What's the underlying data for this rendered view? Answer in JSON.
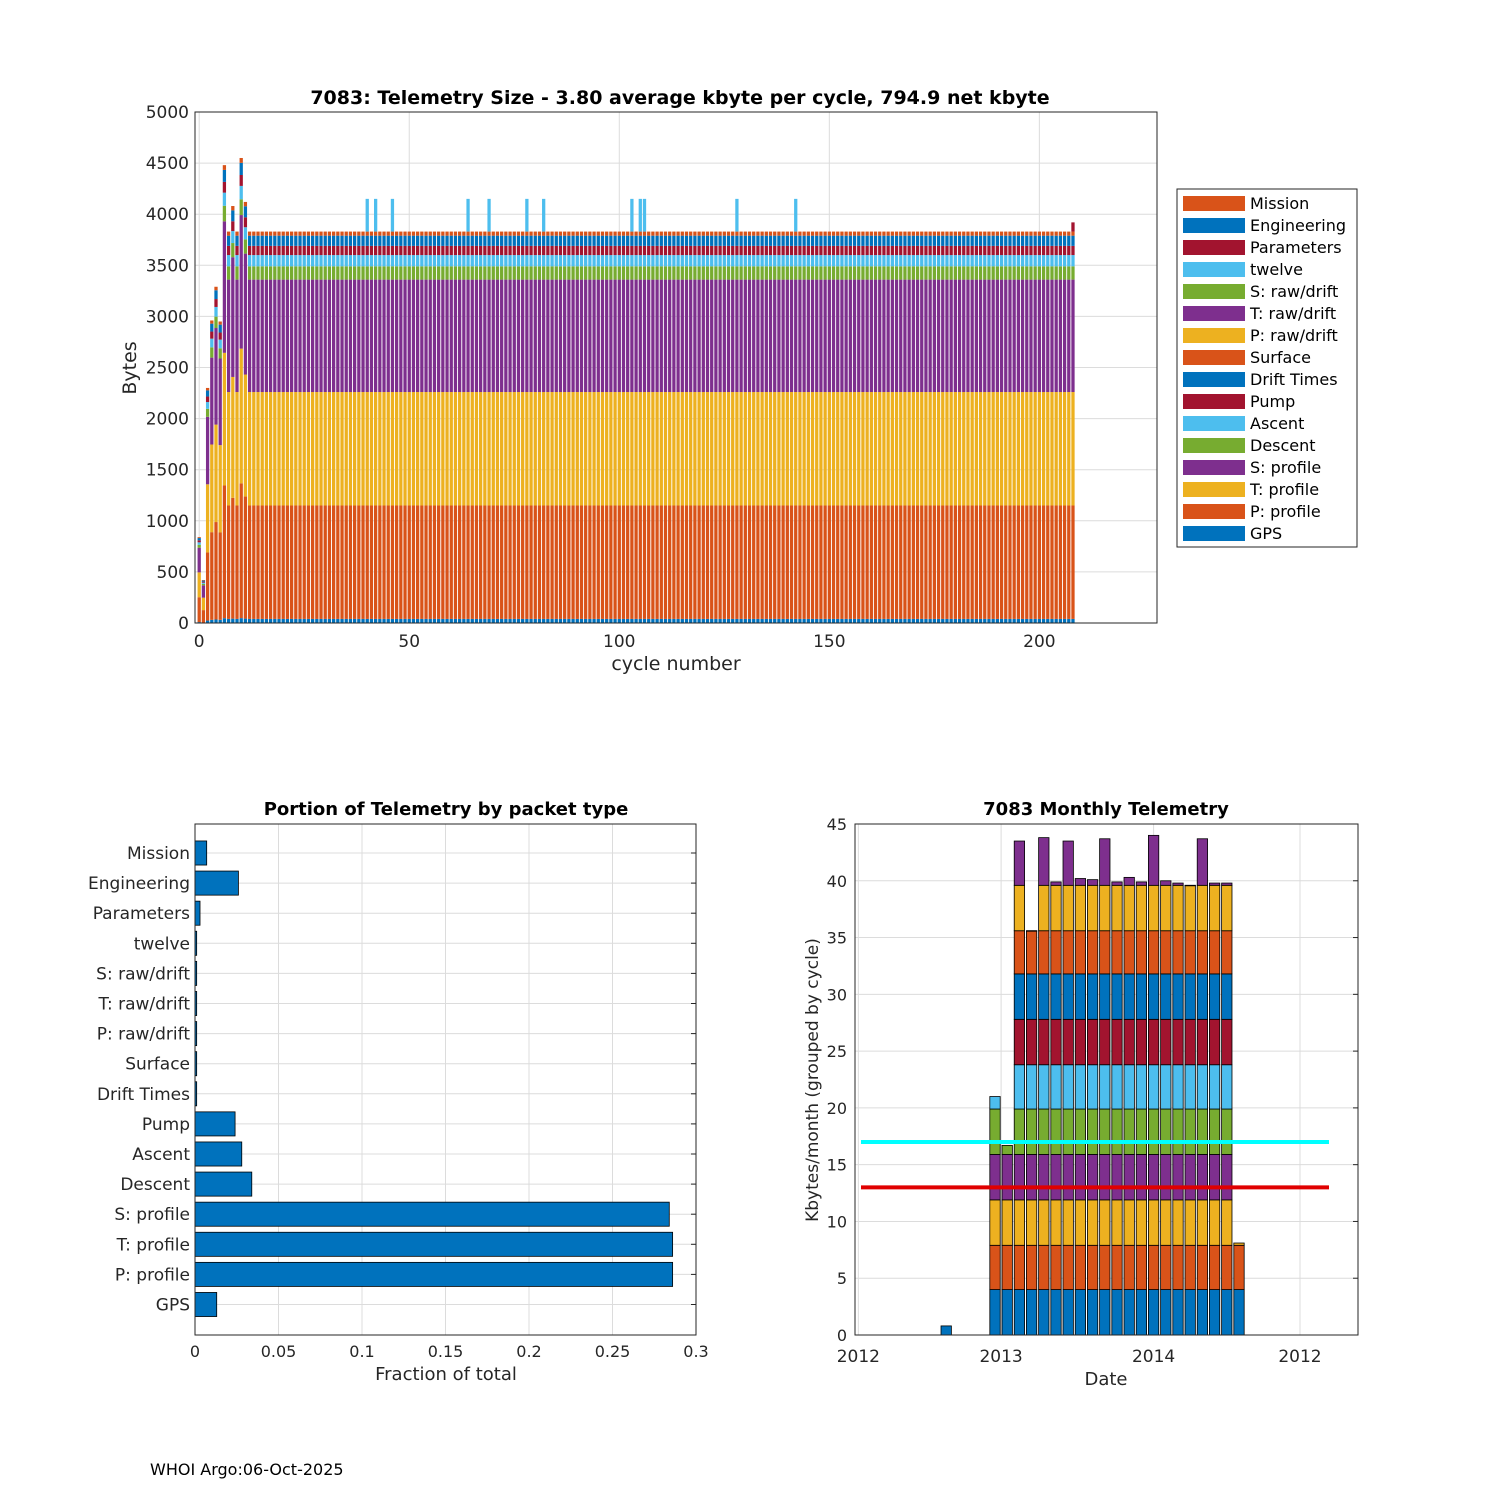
{
  "colors": {
    "blue": "#0072BD",
    "orange": "#D95319",
    "yellow": "#EDB120",
    "purple": "#7E2F8E",
    "green": "#77AC30",
    "cyan": "#4DBEEE",
    "red": "#A2142F",
    "line_cyan": "#00FFFF",
    "line_red": "#E00000"
  },
  "footer": "WHOI Argo:06-Oct-2025",
  "chart_data": [
    {
      "type": "bar",
      "stacked": true,
      "title": "7083: Telemetry Size - 3.80 average kbyte per cycle,  794.9 net kbyte",
      "xlabel": "cycle number",
      "ylabel": "Bytes",
      "xlim": [
        -1,
        228
      ],
      "ylim": [
        0,
        5000
      ],
      "xticks": [
        0,
        50,
        100,
        150,
        200
      ],
      "yticks": [
        0,
        500,
        1000,
        1500,
        2000,
        2500,
        3000,
        3500,
        4000,
        4500,
        5000
      ],
      "grid": true,
      "legend_placement": "outside-right",
      "legend": [
        "Mission",
        "Engineering",
        "Parameters",
        "twelve",
        "S: raw/drift",
        "T: raw/drift",
        "P: raw/drift",
        "Surface",
        "Drift Times",
        "Pump",
        "Ascent",
        "Descent",
        "S: profile",
        "T: profile",
        "P: profile",
        "GPS"
      ],
      "legend_colors": [
        "orange",
        "blue",
        "red",
        "cyan",
        "green",
        "purple",
        "yellow",
        "orange",
        "blue",
        "red",
        "cyan",
        "green",
        "purple",
        "yellow",
        "orange",
        "blue"
      ],
      "cycles": {
        "first": 0,
        "last": 208
      },
      "typical_cycle": {
        "GPS": 40,
        "P: profile": 1110,
        "T: profile": 1110,
        "S: profile": 1100,
        "Descent": 130,
        "Ascent": 110,
        "Pump": 90,
        "Engineering": 100,
        "Mission": 40
      },
      "early_cycles": [
        {
          "cycle": 0,
          "total": 840
        },
        {
          "cycle": 1,
          "total": 420
        },
        {
          "cycle": 2,
          "total": 2300
        },
        {
          "cycle": 3,
          "total": 2960
        },
        {
          "cycle": 4,
          "total": 3290
        },
        {
          "cycle": 5,
          "total": 2950
        },
        {
          "cycle": 6,
          "total": 4480
        },
        {
          "cycle": 8,
          "total": 4080
        },
        {
          "cycle": 10,
          "total": 4550
        },
        {
          "cycle": 11,
          "total": 4120
        }
      ],
      "spike_cycles": [
        40,
        42,
        46,
        64,
        69,
        78,
        82,
        103,
        105,
        106,
        128,
        142
      ],
      "spike_total": 4150,
      "last_cycle_total": 3920
    },
    {
      "type": "bar",
      "orientation": "horizontal",
      "title": "Portion of Telemetry by packet type",
      "xlabel": "Fraction of total",
      "ylabel": "",
      "xlim": [
        0,
        0.3
      ],
      "xticks": [
        0,
        0.05,
        0.1,
        0.15,
        0.2,
        0.25,
        0.3
      ],
      "xtick_labels": [
        "0",
        "0.05",
        "0.1",
        "0.15",
        "0.2",
        "0.25",
        "0.3"
      ],
      "grid": true,
      "categories": [
        "Mission",
        "Engineering",
        "Parameters",
        "twelve",
        "S: raw/drift",
        "T: raw/drift",
        "P: raw/drift",
        "Surface",
        "Drift Times",
        "Pump",
        "Ascent",
        "Descent",
        "S: profile",
        "T: profile",
        "P: profile",
        "GPS"
      ],
      "values": [
        0.007,
        0.026,
        0.003,
        0.001,
        0.001,
        0.001,
        0.001,
        0.001,
        0.001,
        0.024,
        0.028,
        0.034,
        0.284,
        0.286,
        0.286,
        0.013
      ],
      "color": "blue"
    },
    {
      "type": "bar",
      "stacked": true,
      "title": "7083 Monthly Telemetry",
      "xlabel": "Date",
      "ylabel": "Kbytes/month (grouped by cycle)",
      "ylim": [
        0,
        45
      ],
      "yticks": [
        0,
        5,
        10,
        15,
        20,
        25,
        30,
        35,
        40,
        45
      ],
      "xtick_labels": [
        "2012",
        "2013",
        "2014",
        "2012"
      ],
      "grid": true,
      "months": 30,
      "segment_colors": [
        "blue",
        "orange",
        "yellow",
        "purple",
        "green",
        "cyan",
        "red",
        "blue",
        "orange",
        "yellow",
        "purple"
      ],
      "full_month_segments": [
        4.0,
        3.9,
        4.0,
        4.0,
        4.0,
        3.9,
        4.0,
        4.0,
        3.8,
        4.0,
        4.0
      ],
      "bars": [
        {
          "month": 0,
          "total": 0
        },
        {
          "month": 1,
          "total": 0
        },
        {
          "month": 2,
          "total": 0
        },
        {
          "month": 3,
          "total": 0
        },
        {
          "month": 4,
          "total": 0
        },
        {
          "month": 5,
          "total": 0
        },
        {
          "month": 6,
          "total": 0.8
        },
        {
          "month": 7,
          "total": 0
        },
        {
          "month": 8,
          "total": 0
        },
        {
          "month": 9,
          "total": 0
        },
        {
          "month": 10,
          "total": 21.0
        },
        {
          "month": 11,
          "total": 16.7
        },
        {
          "month": 12,
          "total": 43.5
        },
        {
          "month": 13,
          "total": 35.6
        },
        {
          "month": 14,
          "total": 43.8
        },
        {
          "month": 15,
          "total": 39.9
        },
        {
          "month": 16,
          "total": 43.5
        },
        {
          "month": 17,
          "total": 40.2
        },
        {
          "month": 18,
          "total": 40.1
        },
        {
          "month": 19,
          "total": 43.7
        },
        {
          "month": 20,
          "total": 39.9
        },
        {
          "month": 21,
          "total": 40.3
        },
        {
          "month": 22,
          "total": 39.9
        },
        {
          "month": 23,
          "total": 44.0
        },
        {
          "month": 24,
          "total": 40.0
        },
        {
          "month": 25,
          "total": 39.8
        },
        {
          "month": 26,
          "total": 39.6
        },
        {
          "month": 27,
          "total": 43.7
        },
        {
          "month": 28,
          "total": 39.8
        },
        {
          "month": 29,
          "total": 39.8
        },
        {
          "month": 30,
          "total": 8.1
        },
        {
          "month": 31,
          "total": 0
        },
        {
          "month": 32,
          "total": 0
        },
        {
          "month": 33,
          "total": 0
        }
      ],
      "hlines": [
        {
          "y": 17.0,
          "color": "line_cyan"
        },
        {
          "y": 13.0,
          "color": "line_red"
        }
      ]
    }
  ]
}
